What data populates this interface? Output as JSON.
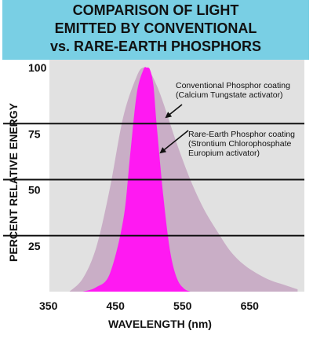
{
  "chart_data": {
    "type": "area",
    "title_lines": [
      "COMPARISON OF LIGHT",
      "EMITTED BY CONVENTIONAL",
      "vs. RARE-EARTH PHOSPHORS"
    ],
    "xlabel": "WAVELENGTH (nm)",
    "ylabel": "PERCENT RELATIVE ENERGY",
    "xlim": [
      350,
      730
    ],
    "ylim": [
      0,
      100
    ],
    "x_ticks": [
      350,
      450,
      550,
      650
    ],
    "y_ticks": [
      25,
      50,
      75,
      100
    ],
    "grid": "horizontal lines at 25, 50, 75",
    "series": [
      {
        "name": "Conventional Phosphor coating (Calcium Tungstate activator)",
        "color": "#c9aec6",
        "x": [
          380,
          400,
          420,
          440,
          460,
          480,
          490,
          500,
          510,
          520,
          540,
          560,
          580,
          600,
          620,
          640,
          660,
          680,
          700,
          720
        ],
        "y": [
          0,
          6,
          20,
          46,
          78,
          96,
          100,
          98,
          92,
          84,
          66,
          50,
          37,
          27,
          18,
          12,
          8,
          5,
          3,
          1
        ]
      },
      {
        "name": "Rare-Earth Phosphor coating (Strontium Chlorophosphate Europium activator)",
        "color": "#ff19f2",
        "x": [
          400,
          420,
          440,
          460,
          470,
          480,
          490,
          495,
          500,
          505,
          510,
          520,
          530,
          540,
          550,
          560
        ],
        "y": [
          0,
          2,
          8,
          32,
          60,
          88,
          99,
          100,
          99,
          92,
          74,
          42,
          18,
          6,
          1.5,
          0
        ]
      }
    ],
    "annotations": [
      {
        "lines": [
          "Conventional Phosphor coating",
          "(Calcium Tungstate activator)"
        ]
      },
      {
        "lines": [
          "Rare-Earth Phosphor coating",
          "(Strontium Chlorophosphate",
          "Europium activator)"
        ]
      }
    ]
  }
}
